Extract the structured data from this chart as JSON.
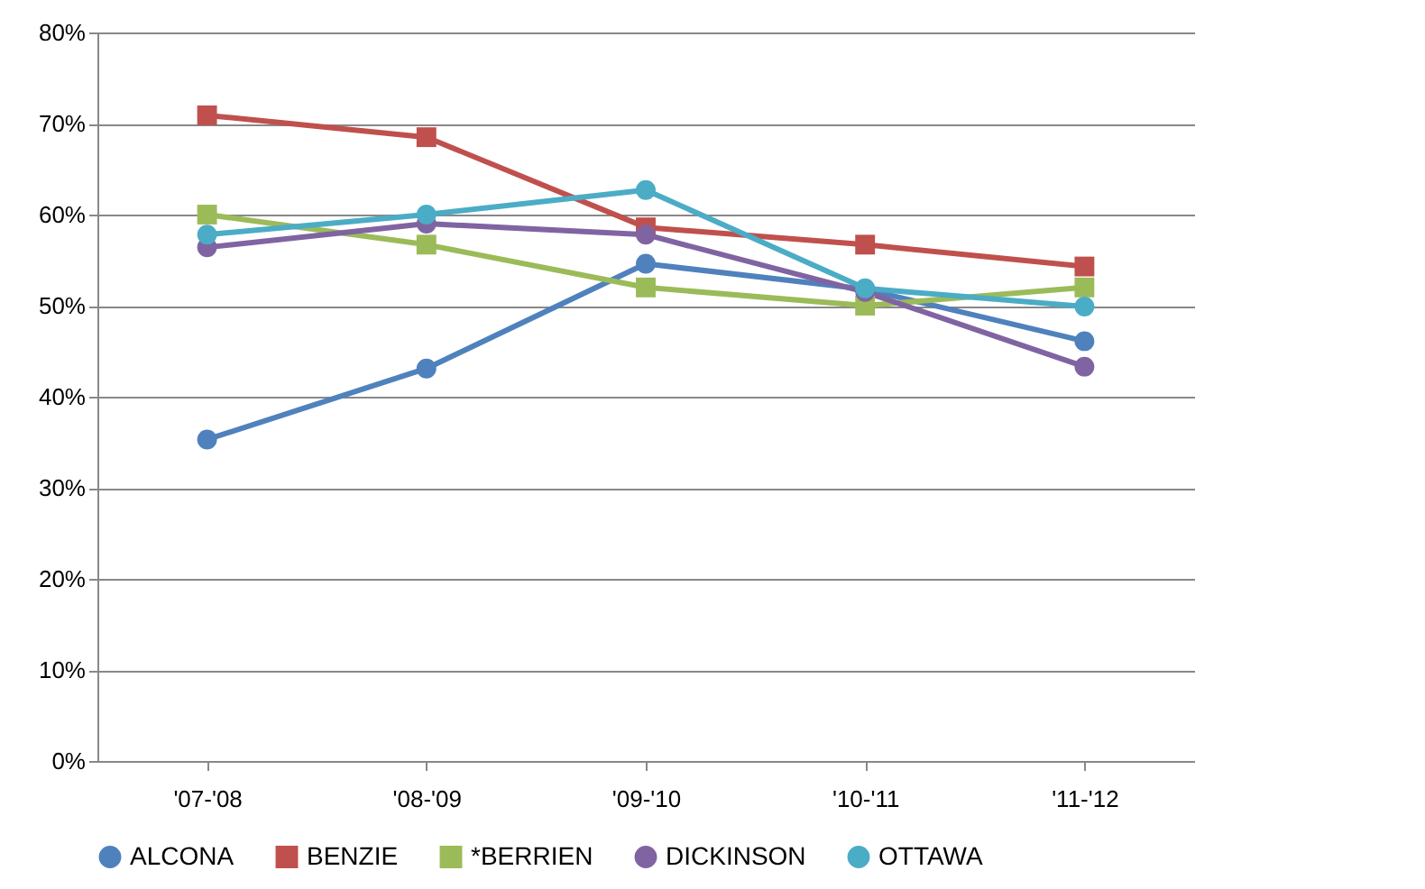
{
  "chart_data": {
    "type": "line",
    "categories": [
      "'07-'08",
      "'08-'09",
      "'09-'10",
      "'10-'11",
      "'11-'12"
    ],
    "ylim": [
      0,
      80
    ],
    "yticks": [
      {
        "value": 0,
        "label": "0%"
      },
      {
        "value": 10,
        "label": "10%"
      },
      {
        "value": 20,
        "label": "20%"
      },
      {
        "value": 30,
        "label": "30%"
      },
      {
        "value": 40,
        "label": "40%"
      },
      {
        "value": 50,
        "label": "50%"
      },
      {
        "value": 60,
        "label": "60%"
      },
      {
        "value": 70,
        "label": "70%"
      },
      {
        "value": 80,
        "label": "80%"
      }
    ],
    "grid": "y",
    "legend": "bottom",
    "series": [
      {
        "name": "ALCONA",
        "color": "#4f81bd",
        "marker": "circle",
        "values": [
          35.3,
          43.1,
          54.6,
          51.8,
          46.1
        ]
      },
      {
        "name": "BENZIE",
        "color": "#c0504d",
        "marker": "square",
        "values": [
          70.9,
          68.5,
          58.6,
          56.7,
          54.3
        ]
      },
      {
        "name": "*BERRIEN",
        "color": "#9bbb59",
        "marker": "square",
        "values": [
          60,
          56.7,
          52,
          50,
          52
        ]
      },
      {
        "name": "DICKINSON",
        "color": "#8064a2",
        "marker": "circle",
        "values": [
          56.4,
          59,
          57.8,
          51.5,
          43.3
        ]
      },
      {
        "name": "OTTAWA",
        "color": "#4bacc6",
        "marker": "circle",
        "values": [
          57.8,
          60,
          62.7,
          51.9,
          49.9
        ]
      }
    ]
  }
}
